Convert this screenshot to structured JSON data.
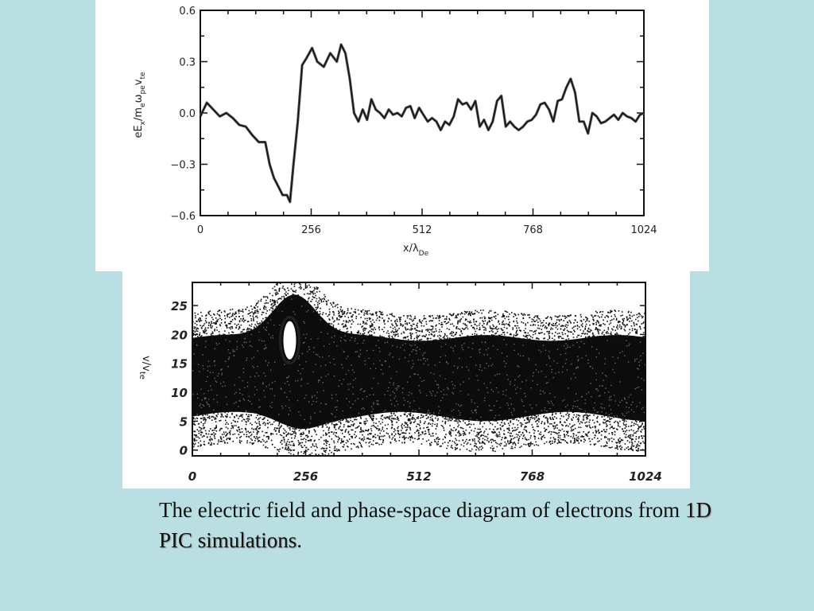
{
  "chart_data": [
    {
      "type": "line",
      "title": "",
      "xlabel": "x/λ",
      "xlabel_sub": "De",
      "ylabel": "eE",
      "ylabel_sub": "x",
      "ylabel_rest": "/m",
      "ylabel_sub2": "e",
      "ylabel_rest2": "ω",
      "ylabel_sub3": "pe",
      "ylabel_rest3": "v",
      "ylabel_sub4": "te",
      "xlim": [
        0,
        1024
      ],
      "ylim": [
        -0.6,
        0.6
      ],
      "x_ticks": [
        0,
        256,
        512,
        768,
        1024
      ],
      "x_tick_labels": [
        "0",
        "256",
        "512",
        "768",
        "1024"
      ],
      "y_ticks": [
        -0.6,
        -0.3,
        0.0,
        0.3,
        0.6
      ],
      "y_tick_labels": [
        "−0.6",
        "−0.3",
        "0.0",
        "0.3",
        "0.6"
      ],
      "series": [
        {
          "x": [
            0,
            15,
            30,
            45,
            60,
            75,
            90,
            105,
            120,
            135,
            150,
            160,
            170,
            180,
            190,
            200,
            207,
            215,
            225,
            235,
            245,
            258,
            270,
            285,
            300,
            315,
            325,
            335,
            345,
            355,
            365,
            375,
            385,
            395,
            405,
            415,
            425,
            435,
            445,
            455,
            465,
            475,
            485,
            495,
            505,
            515,
            525,
            535,
            545,
            555,
            565,
            575,
            585,
            595,
            605,
            615,
            625,
            635,
            645,
            655,
            665,
            675,
            685,
            695,
            705,
            715,
            725,
            735,
            745,
            755,
            765,
            775,
            785,
            795,
            805,
            815,
            825,
            835,
            845,
            855,
            865,
            875,
            885,
            895,
            905,
            915,
            925,
            935,
            945,
            955,
            965,
            975,
            985,
            995,
            1005,
            1015,
            1024
          ],
          "y": [
            -0.02,
            0.06,
            0.02,
            -0.02,
            0.0,
            -0.03,
            -0.07,
            -0.08,
            -0.13,
            -0.17,
            -0.17,
            -0.3,
            -0.38,
            -0.43,
            -0.48,
            -0.48,
            -0.52,
            -0.3,
            -0.05,
            0.28,
            0.32,
            0.38,
            0.3,
            0.27,
            0.35,
            0.3,
            0.4,
            0.35,
            0.2,
            0.0,
            -0.05,
            0.02,
            -0.04,
            0.08,
            0.02,
            0.0,
            -0.03,
            0.02,
            -0.01,
            0.0,
            -0.02,
            0.03,
            0.04,
            -0.03,
            0.03,
            -0.01,
            -0.05,
            -0.03,
            -0.05,
            -0.1,
            -0.05,
            -0.07,
            -0.02,
            0.08,
            0.05,
            0.06,
            0.02,
            0.07,
            -0.08,
            -0.04,
            -0.1,
            -0.05,
            0.07,
            0.1,
            -0.08,
            -0.05,
            -0.08,
            -0.1,
            -0.08,
            -0.05,
            -0.04,
            -0.01,
            0.05,
            0.06,
            0.02,
            -0.05,
            0.07,
            0.08,
            0.15,
            0.2,
            0.12,
            -0.05,
            -0.05,
            -0.12,
            0.0,
            -0.02,
            -0.06,
            -0.05,
            -0.03,
            -0.01,
            -0.04,
            0.0,
            -0.02,
            -0.03,
            -0.05,
            -0.01,
            0.0
          ]
        }
      ]
    },
    {
      "type": "scatter",
      "title": "",
      "ylabel": "v/v",
      "ylabel_sub": "te",
      "xlim": [
        0,
        1024
      ],
      "ylim": [
        -1,
        29
      ],
      "x_ticks": [
        0,
        256,
        512,
        768,
        1024
      ],
      "x_tick_labels": [
        "0",
        "256",
        "512",
        "768",
        "1024"
      ],
      "y_ticks": [
        0,
        5,
        10,
        15,
        20,
        25
      ],
      "y_tick_labels": [
        "0",
        "5",
        "10",
        "15",
        "20",
        "25"
      ],
      "description_band": {
        "v_lower": 5,
        "v_upper": 20,
        "hole_center_x": 220,
        "hole_center_v": 19,
        "vortex_peak_x": 230,
        "vortex_peak_v": 28
      }
    }
  ],
  "caption": {
    "part1": "The electric field and phase-space diagram of electrons from ",
    "part2": "1D PIC simulations",
    "part3": "."
  }
}
